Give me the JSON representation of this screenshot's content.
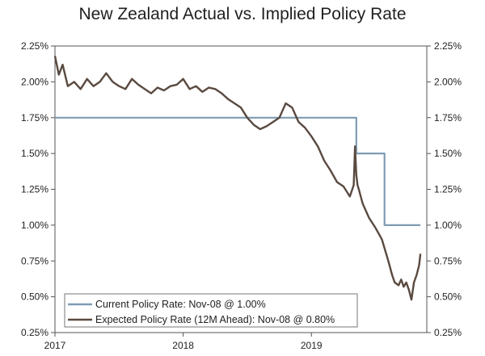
{
  "chart_data": {
    "type": "line",
    "title": "New Zealand Actual vs. Implied Policy Rate",
    "xlabel": "",
    "ylabel": "",
    "x_ticks": [
      "2017",
      "2018",
      "2019"
    ],
    "y_tick_labels": [
      "2.25%",
      "2.00%",
      "1.75%",
      "1.50%",
      "1.25%",
      "1.00%",
      "0.75%",
      "0.50%",
      "0.25%"
    ],
    "y_tick_values": [
      2.25,
      2.0,
      1.75,
      1.5,
      1.25,
      1.0,
      0.75,
      0.5,
      0.25
    ],
    "ylim": [
      0.25,
      2.25
    ],
    "xlim": [
      2017.0,
      2019.9
    ],
    "legend_position": "bottom-left",
    "series": [
      {
        "name": "Current Policy Rate: Nov-08 @ 1.00%",
        "color": "#7f9bb3",
        "style": "step",
        "x": [
          2017.0,
          2019.35,
          2019.35,
          2019.57,
          2019.57,
          2019.85
        ],
        "values": [
          1.75,
          1.75,
          1.5,
          1.5,
          1.0,
          1.0
        ]
      },
      {
        "name": "Expected Policy Rate (12M Ahead): Nov-08 @ 0.80%",
        "color": "#5a4a40",
        "style": "line",
        "x": [
          2017.0,
          2017.03,
          2017.06,
          2017.1,
          2017.15,
          2017.2,
          2017.25,
          2017.3,
          2017.35,
          2017.4,
          2017.45,
          2017.5,
          2017.55,
          2017.6,
          2017.65,
          2017.7,
          2017.75,
          2017.8,
          2017.85,
          2017.9,
          2017.95,
          2018.0,
          2018.05,
          2018.1,
          2018.15,
          2018.2,
          2018.25,
          2018.3,
          2018.35,
          2018.4,
          2018.45,
          2018.5,
          2018.55,
          2018.6,
          2018.65,
          2018.7,
          2018.75,
          2018.8,
          2018.85,
          2018.9,
          2018.95,
          2019.0,
          2019.05,
          2019.1,
          2019.15,
          2019.2,
          2019.25,
          2019.3,
          2019.33,
          2019.34,
          2019.35,
          2019.36,
          2019.37,
          2019.4,
          2019.45,
          2019.5,
          2019.55,
          2019.6,
          2019.63,
          2019.65,
          2019.68,
          2019.7,
          2019.72,
          2019.74,
          2019.76,
          2019.78,
          2019.8,
          2019.82,
          2019.84,
          2019.85
        ],
        "values": [
          2.18,
          2.05,
          2.12,
          1.97,
          2.0,
          1.95,
          2.02,
          1.97,
          2.0,
          2.06,
          2.0,
          1.97,
          1.95,
          2.02,
          1.98,
          1.95,
          1.92,
          1.96,
          1.94,
          1.97,
          1.98,
          2.02,
          1.95,
          1.97,
          1.93,
          1.96,
          1.95,
          1.92,
          1.88,
          1.85,
          1.82,
          1.75,
          1.7,
          1.67,
          1.69,
          1.72,
          1.75,
          1.85,
          1.82,
          1.72,
          1.68,
          1.62,
          1.55,
          1.45,
          1.38,
          1.3,
          1.27,
          1.2,
          1.28,
          1.55,
          1.35,
          1.28,
          1.25,
          1.15,
          1.05,
          0.98,
          0.9,
          0.75,
          0.65,
          0.6,
          0.58,
          0.62,
          0.57,
          0.6,
          0.55,
          0.48,
          0.6,
          0.65,
          0.72,
          0.8
        ]
      }
    ]
  }
}
